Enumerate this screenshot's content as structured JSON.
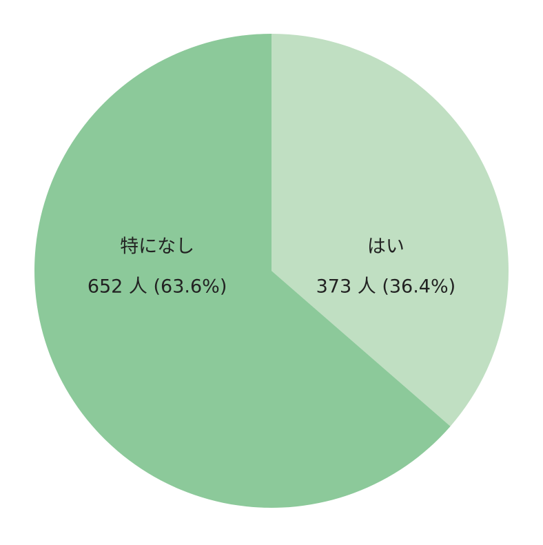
{
  "chart_data": {
    "type": "pie",
    "categories": [
      "はい",
      "特になし"
    ],
    "values": [
      373,
      652
    ],
    "value_labels": [
      "373 人 (36.4%)",
      "652 人 (63.6%)"
    ],
    "colors": [
      "#c0dfc2",
      "#8cc99a"
    ]
  }
}
